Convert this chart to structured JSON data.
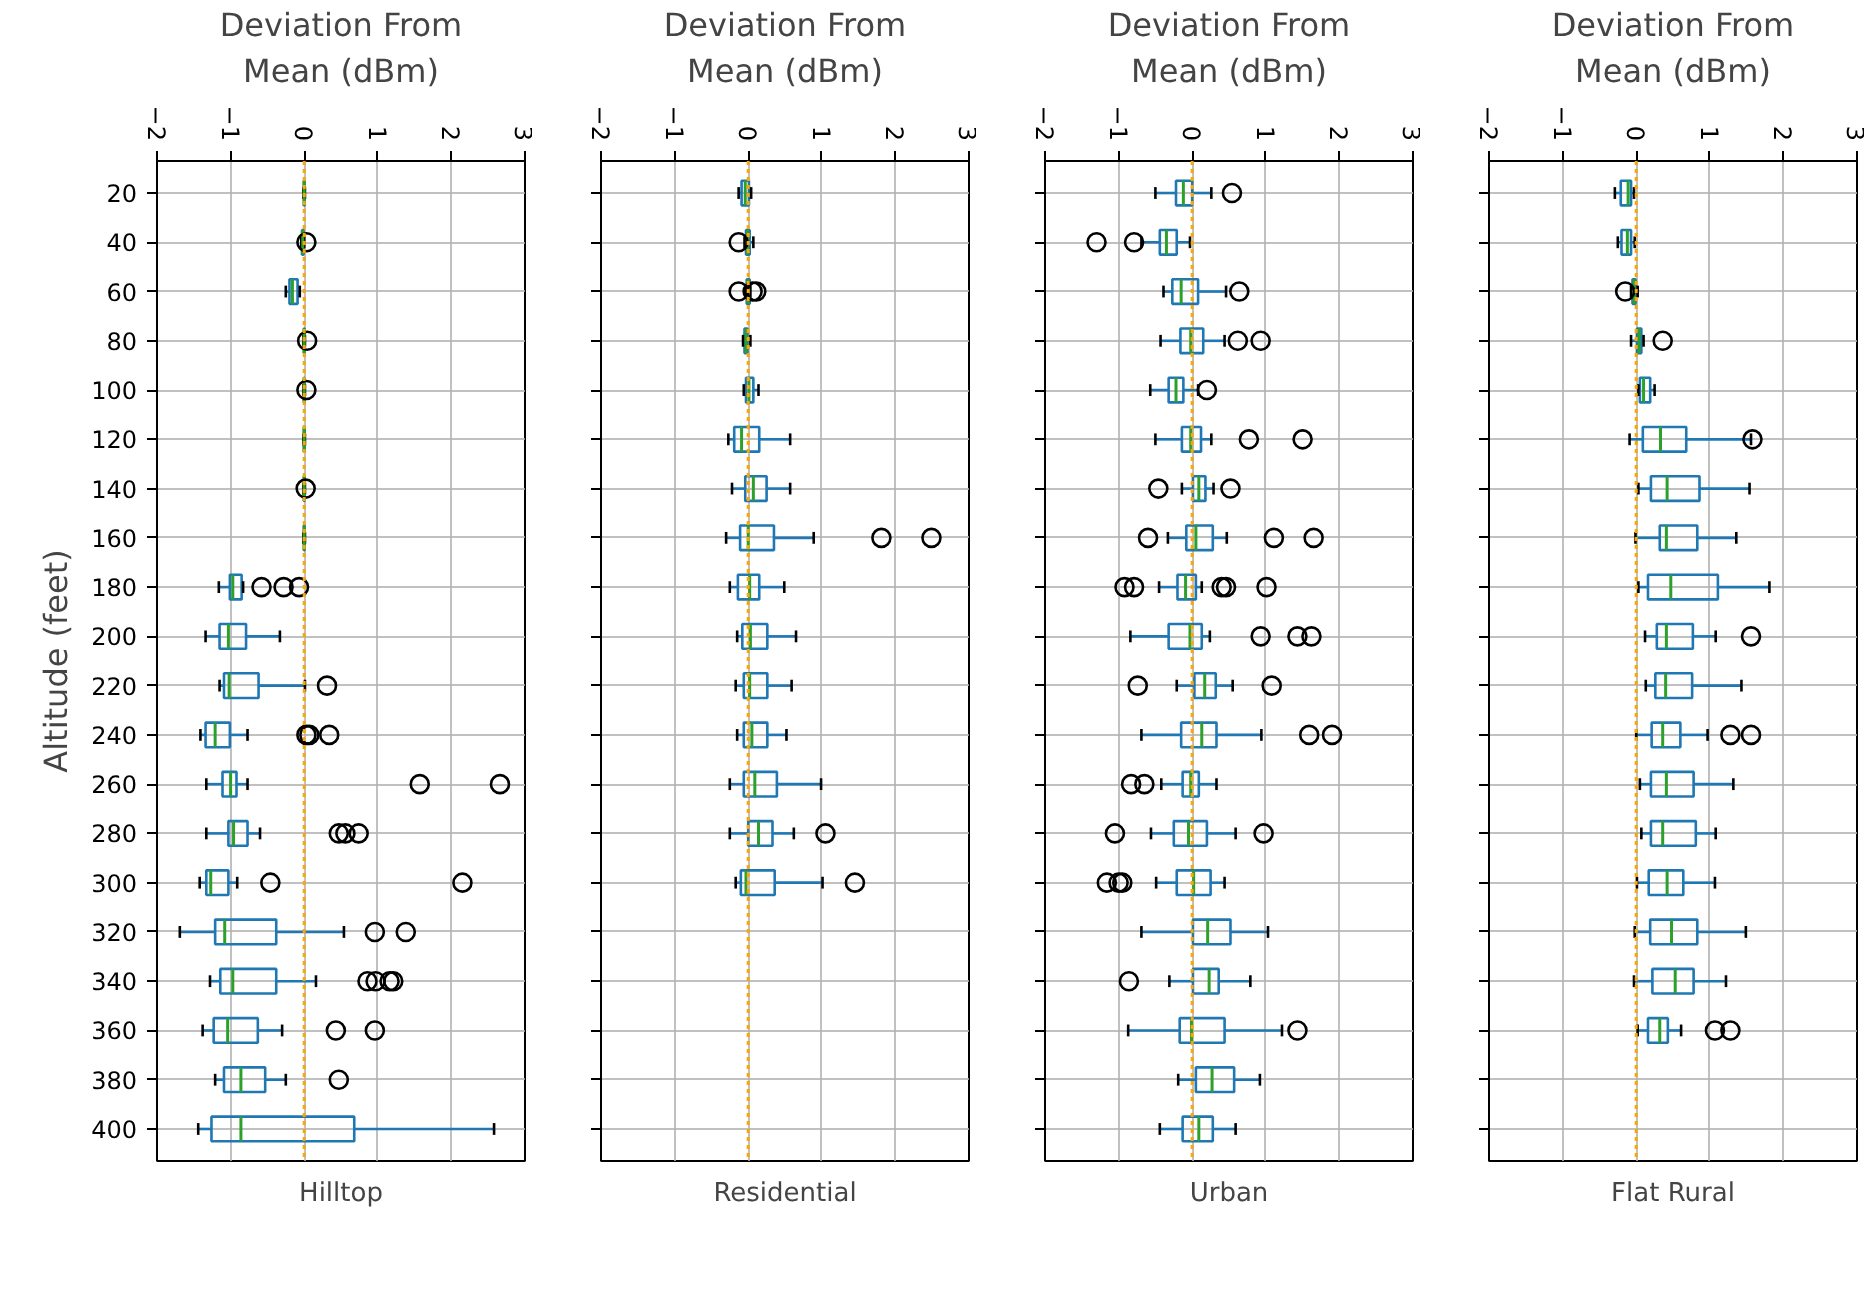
{
  "chart_data": [
    {
      "type": "box",
      "orientation": "horizontal",
      "title": "Hilltop",
      "xlabel": "Deviation From\nMean (dBm)",
      "ylabel": "Altitude (feet)",
      "categories": [
        "20",
        "40",
        "60",
        "80",
        "100",
        "120",
        "140",
        "160",
        "180",
        "200",
        "220",
        "240",
        "260",
        "280",
        "300",
        "320",
        "340",
        "360",
        "380",
        "400"
      ],
      "xlim": [
        -2,
        3
      ],
      "xticks": [
        -2,
        -1,
        0,
        1,
        2,
        3
      ],
      "grid": true,
      "ref_lines": [
        {
          "axis": "x",
          "value": 0,
          "color": "#ffa500",
          "line_style": "dotted"
        }
      ],
      "series": [
        {
          "color": "#1f77b4",
          "boxes": [
            {
              "low": -0.01,
              "q1": -0.005,
              "median": 0,
              "q3": 0.005,
              "high": 0.01
            },
            {
              "low": -0.04,
              "q1": -0.03,
              "median": -0.02,
              "q3": -0.01,
              "high": 0,
              "outliers": [
                0.03
              ]
            },
            {
              "low": -0.25,
              "q1": -0.2,
              "median": -0.16,
              "q3": -0.09,
              "high": -0.06
            },
            {
              "low": -0.01,
              "q1": -0.005,
              "median": 0,
              "q3": 0.005,
              "high": 0.01,
              "outliers": [
                0.04
              ]
            },
            {
              "low": -0.01,
              "q1": -0.005,
              "median": 0,
              "q3": 0.005,
              "high": 0.01,
              "outliers": [
                0.03
              ]
            },
            {
              "low": -0.01,
              "q1": -0.005,
              "median": 0,
              "q3": 0.005,
              "high": 0.01
            },
            {
              "low": -0.01,
              "q1": -0.005,
              "median": 0,
              "q3": 0.005,
              "high": 0.01,
              "outliers": [
                0.02
              ]
            },
            {
              "low": -0.01,
              "q1": -0.005,
              "median": 0,
              "q3": 0.005,
              "high": 0.01
            },
            {
              "low": -1.16,
              "q1": -1.01,
              "median": -0.97,
              "q3": -0.85,
              "high": -0.83,
              "outliers": [
                -0.58,
                -0.28,
                -0.07
              ]
            },
            {
              "low": -1.34,
              "q1": -1.15,
              "median": -1.03,
              "q3": -0.79,
              "high": -0.33
            },
            {
              "low": -1.15,
              "q1": -1.09,
              "median": -1.02,
              "q3": -0.62,
              "high": 0.01,
              "outliers": [
                0.31
              ]
            },
            {
              "low": -1.41,
              "q1": -1.34,
              "median": -1.21,
              "q3": -1.01,
              "high": -0.77,
              "outliers": [
                0.03,
                0.07,
                0.34
              ]
            },
            {
              "low": -1.33,
              "q1": -1.11,
              "median": -1.0,
              "q3": -0.92,
              "high": -0.77,
              "outliers": [
                1.57,
                2.66
              ]
            },
            {
              "low": -1.33,
              "q1": -1.03,
              "median": -0.96,
              "q3": -0.77,
              "high": -0.6,
              "outliers": [
                0.47,
                0.56,
                0.74
              ]
            },
            {
              "low": -1.42,
              "q1": -1.33,
              "median": -1.27,
              "q3": -1.03,
              "high": -0.91,
              "outliers": [
                -0.46,
                2.15
              ]
            },
            {
              "low": -1.69,
              "q1": -1.21,
              "median": -1.08,
              "q3": -0.38,
              "high": 0.54,
              "outliers": [
                0.96,
                1.38
              ]
            },
            {
              "low": -1.28,
              "q1": -1.14,
              "median": -0.97,
              "q3": -0.38,
              "high": 0.16,
              "outliers": [
                0.86,
                0.97,
                1.16,
                1.21
              ]
            },
            {
              "low": -1.38,
              "q1": -1.23,
              "median": -1.04,
              "q3": -0.63,
              "high": -0.3,
              "outliers": [
                0.43,
                0.96
              ]
            },
            {
              "low": -1.21,
              "q1": -1.09,
              "median": -0.86,
              "q3": -0.53,
              "high": -0.25,
              "outliers": [
                0.47
              ]
            },
            {
              "low": -1.44,
              "q1": -1.26,
              "median": -0.86,
              "q3": 0.68,
              "high": 2.58
            }
          ]
        }
      ]
    },
    {
      "type": "box",
      "orientation": "horizontal",
      "title": "Residential",
      "xlabel": "Deviation From\nMean (dBm)",
      "tick_labels": "x",
      "categories": [
        "20",
        "40",
        "60",
        "80",
        "100",
        "120",
        "140",
        "160",
        "180",
        "200",
        "220",
        "240",
        "260",
        "280",
        "300",
        "320",
        "340",
        "360",
        "380",
        "400"
      ],
      "xlim": [
        -2,
        3
      ],
      "xticks": [
        -2,
        -1,
        0,
        1,
        2,
        3
      ],
      "grid": true,
      "ref_lines": [
        {
          "axis": "x",
          "value": 0,
          "color": "#ffa500",
          "line_style": "dotted"
        }
      ],
      "series": [
        {
          "color": "#1f77b4",
          "boxes": [
            {
              "low": -0.13,
              "q1": -0.09,
              "median": -0.04,
              "q3": 0.01,
              "high": 0.04
            },
            {
              "low": -0.05,
              "q1": -0.03,
              "median": -0.01,
              "q3": 0.02,
              "high": 0.07,
              "outliers": [
                -0.13
              ]
            },
            {
              "low": -0.03,
              "q1": -0.02,
              "median": 0,
              "q3": 0.02,
              "high": 0.03,
              "outliers": [
                -0.13,
                0.06,
                0.11
              ]
            },
            {
              "low": -0.07,
              "q1": -0.05,
              "median": -0.03,
              "q3": -0.01,
              "high": 0.03
            },
            {
              "low": -0.06,
              "q1": -0.03,
              "median": 0.01,
              "q3": 0.07,
              "high": 0.14
            },
            {
              "low": -0.27,
              "q1": -0.19,
              "median": -0.09,
              "q3": 0.15,
              "high": 0.57
            },
            {
              "low": -0.22,
              "q1": -0.04,
              "median": 0.07,
              "q3": 0.25,
              "high": 0.57
            },
            {
              "low": -0.3,
              "q1": -0.11,
              "median": 0,
              "q3": 0.35,
              "high": 0.89,
              "outliers": [
                1.81,
                2.49
              ]
            },
            {
              "low": -0.25,
              "q1": -0.14,
              "median": 0.02,
              "q3": 0.15,
              "high": 0.49
            },
            {
              "low": -0.15,
              "q1": -0.08,
              "median": 0.03,
              "q3": 0.26,
              "high": 0.65
            },
            {
              "low": -0.17,
              "q1": -0.06,
              "median": 0.02,
              "q3": 0.26,
              "high": 0.59
            },
            {
              "low": -0.15,
              "q1": -0.06,
              "median": 0.05,
              "q3": 0.26,
              "high": 0.52
            },
            {
              "low": -0.25,
              "q1": -0.06,
              "median": 0.09,
              "q3": 0.39,
              "high": 0.99
            },
            {
              "low": -0.25,
              "q1": 0,
              "median": 0.14,
              "q3": 0.33,
              "high": 0.62,
              "outliers": [
                1.05
              ]
            },
            {
              "low": -0.17,
              "q1": -0.1,
              "median": -0.03,
              "q3": 0.36,
              "high": 1.01,
              "outliers": [
                1.45
              ]
            },
            null,
            null,
            null,
            null,
            null
          ]
        }
      ]
    },
    {
      "type": "box",
      "orientation": "horizontal",
      "title": "Urban",
      "xlabel": "Deviation From\nMean (dBm)",
      "tick_labels": "x",
      "categories": [
        "20",
        "40",
        "60",
        "80",
        "100",
        "120",
        "140",
        "160",
        "180",
        "200",
        "220",
        "240",
        "260",
        "280",
        "300",
        "320",
        "340",
        "360",
        "380",
        "400"
      ],
      "xlim": [
        -2,
        3
      ],
      "xticks": [
        -2,
        -1,
        0,
        1,
        2,
        3
      ],
      "grid": true,
      "ref_lines": [
        {
          "axis": "x",
          "value": 0,
          "color": "#ffa500",
          "line_style": "dotted"
        }
      ],
      "series": [
        {
          "color": "#1f77b4",
          "boxes": [
            {
              "low": -0.5,
              "q1": -0.22,
              "median": -0.12,
              "q3": 0,
              "high": 0.26,
              "outliers": [
                0.54
              ]
            },
            {
              "low": -0.69,
              "q1": -0.44,
              "median": -0.35,
              "q3": -0.21,
              "high": -0.03,
              "outliers": [
                -1.3,
                -0.79
              ]
            },
            {
              "low": -0.39,
              "q1": -0.27,
              "median": -0.15,
              "q3": 0.08,
              "high": 0.46,
              "outliers": [
                0.64
              ]
            },
            {
              "low": -0.43,
              "q1": -0.16,
              "median": -0.02,
              "q3": 0.15,
              "high": 0.44,
              "outliers": [
                0.62,
                0.93
              ]
            },
            {
              "low": -0.57,
              "q1": -0.32,
              "median": -0.22,
              "q3": -0.12,
              "high": 0.08,
              "outliers": [
                0.2
              ]
            },
            {
              "low": -0.5,
              "q1": -0.14,
              "median": -0.02,
              "q3": 0.12,
              "high": 0.26,
              "outliers": [
                0.77,
                1.5
              ]
            },
            {
              "low": -0.14,
              "q1": 0.01,
              "median": 0.09,
              "q3": 0.18,
              "high": 0.29,
              "outliers": [
                -0.46,
                0.52
              ]
            },
            {
              "low": -0.33,
              "q1": -0.08,
              "median": 0.05,
              "q3": 0.28,
              "high": 0.47,
              "outliers": [
                -0.6,
                1.11,
                1.65
              ]
            },
            {
              "low": -0.45,
              "q1": -0.2,
              "median": -0.09,
              "q3": 0.05,
              "high": 0.13,
              "outliers": [
                -0.92,
                -0.79,
                0.4,
                0.46,
                1.01
              ]
            },
            {
              "low": -0.84,
              "q1": -0.32,
              "median": -0.03,
              "q3": 0.13,
              "high": 0.24,
              "outliers": [
                0.93,
                1.43,
                1.62
              ]
            },
            {
              "low": -0.21,
              "q1": 0.03,
              "median": 0.17,
              "q3": 0.32,
              "high": 0.55,
              "outliers": [
                -0.74,
                1.08
              ]
            },
            {
              "low": -0.69,
              "q1": -0.15,
              "median": 0.13,
              "q3": 0.33,
              "high": 0.94,
              "outliers": [
                1.59,
                1.9
              ]
            },
            {
              "low": -0.42,
              "q1": -0.13,
              "median": -0.02,
              "q3": 0.09,
              "high": 0.33,
              "outliers": [
                -0.83,
                -0.65
              ]
            },
            {
              "low": -0.56,
              "q1": -0.25,
              "median": -0.05,
              "q3": 0.2,
              "high": 0.59,
              "outliers": [
                -1.05,
                0.97
              ]
            },
            {
              "low": -0.49,
              "q1": -0.21,
              "median": 0.02,
              "q3": 0.25,
              "high": 0.44,
              "outliers": [
                -1.16,
                -1.0,
                -0.95
              ]
            },
            {
              "low": -0.69,
              "q1": 0.01,
              "median": 0.21,
              "q3": 0.52,
              "high": 1.03
            },
            {
              "low": -0.31,
              "q1": 0.01,
              "median": 0.23,
              "q3": 0.36,
              "high": 0.79,
              "outliers": [
                -0.86
              ]
            },
            {
              "low": -0.87,
              "q1": -0.17,
              "median": -0.01,
              "q3": 0.44,
              "high": 1.22,
              "outliers": [
                1.43
              ]
            },
            {
              "low": -0.19,
              "q1": 0.05,
              "median": 0.27,
              "q3": 0.57,
              "high": 0.92
            },
            {
              "low": -0.44,
              "q1": -0.13,
              "median": 0.09,
              "q3": 0.28,
              "high": 0.59
            }
          ]
        }
      ]
    },
    {
      "type": "box",
      "orientation": "horizontal",
      "title": "Flat Rural",
      "xlabel": "Deviation From\nMean (dBm)",
      "tick_labels": "x",
      "categories": [
        "20",
        "40",
        "60",
        "80",
        "100",
        "120",
        "140",
        "160",
        "180",
        "200",
        "220",
        "240",
        "260",
        "280",
        "300",
        "320",
        "340",
        "360",
        "380",
        "400"
      ],
      "xlim": [
        -2,
        3
      ],
      "xticks": [
        -2,
        -1,
        0,
        1,
        2,
        3
      ],
      "grid": true,
      "ref_lines": [
        {
          "axis": "x",
          "value": 0,
          "color": "#ffa500",
          "line_style": "dotted"
        }
      ],
      "series": [
        {
          "color": "#1f77b4",
          "boxes": [
            {
              "low": -0.29,
              "q1": -0.21,
              "median": -0.11,
              "q3": -0.07,
              "high": -0.03
            },
            {
              "low": -0.25,
              "q1": -0.2,
              "median": -0.12,
              "q3": -0.07,
              "high": -0.02
            },
            {
              "low": -0.07,
              "q1": -0.05,
              "median": -0.03,
              "q3": -0.01,
              "high": 0.02,
              "outliers": [
                -0.15
              ]
            },
            {
              "low": -0.07,
              "q1": 0.01,
              "median": 0.04,
              "q3": 0.07,
              "high": 0.1,
              "outliers": [
                0.36
              ]
            },
            {
              "low": 0.03,
              "q1": 0.05,
              "median": 0.1,
              "q3": 0.19,
              "high": 0.25
            },
            {
              "low": -0.09,
              "q1": 0.09,
              "median": 0.33,
              "q3": 0.68,
              "high": 1.56,
              "outliers": [
                1.58
              ]
            },
            {
              "low": 0.03,
              "q1": 0.2,
              "median": 0.42,
              "q3": 0.86,
              "high": 1.54
            },
            {
              "low": -0.01,
              "q1": 0.32,
              "median": 0.41,
              "q3": 0.83,
              "high": 1.36
            },
            {
              "low": 0.03,
              "q1": 0.16,
              "median": 0.47,
              "q3": 1.11,
              "high": 1.81
            },
            {
              "low": 0.12,
              "q1": 0.28,
              "median": 0.41,
              "q3": 0.77,
              "high": 1.08,
              "outliers": [
                1.56
              ]
            },
            {
              "low": 0.13,
              "q1": 0.26,
              "median": 0.4,
              "q3": 0.76,
              "high": 1.43
            },
            {
              "low": 0,
              "q1": 0.21,
              "median": 0.36,
              "q3": 0.6,
              "high": 0.97,
              "outliers": [
                1.28,
                1.56
              ]
            },
            {
              "low": 0.05,
              "q1": 0.2,
              "median": 0.41,
              "q3": 0.78,
              "high": 1.32
            },
            {
              "low": 0.07,
              "q1": 0.2,
              "median": 0.36,
              "q3": 0.81,
              "high": 1.08
            },
            {
              "low": 0.01,
              "q1": 0.17,
              "median": 0.42,
              "q3": 0.64,
              "high": 1.07
            },
            {
              "low": -0.02,
              "q1": 0.19,
              "median": 0.48,
              "q3": 0.83,
              "high": 1.49
            },
            {
              "low": -0.03,
              "q1": 0.22,
              "median": 0.53,
              "q3": 0.78,
              "high": 1.22
            },
            {
              "low": 0.02,
              "q1": 0.16,
              "median": 0.32,
              "q3": 0.43,
              "high": 0.61,
              "outliers": [
                1.07,
                1.28
              ]
            },
            null,
            null
          ]
        }
      ]
    }
  ]
}
